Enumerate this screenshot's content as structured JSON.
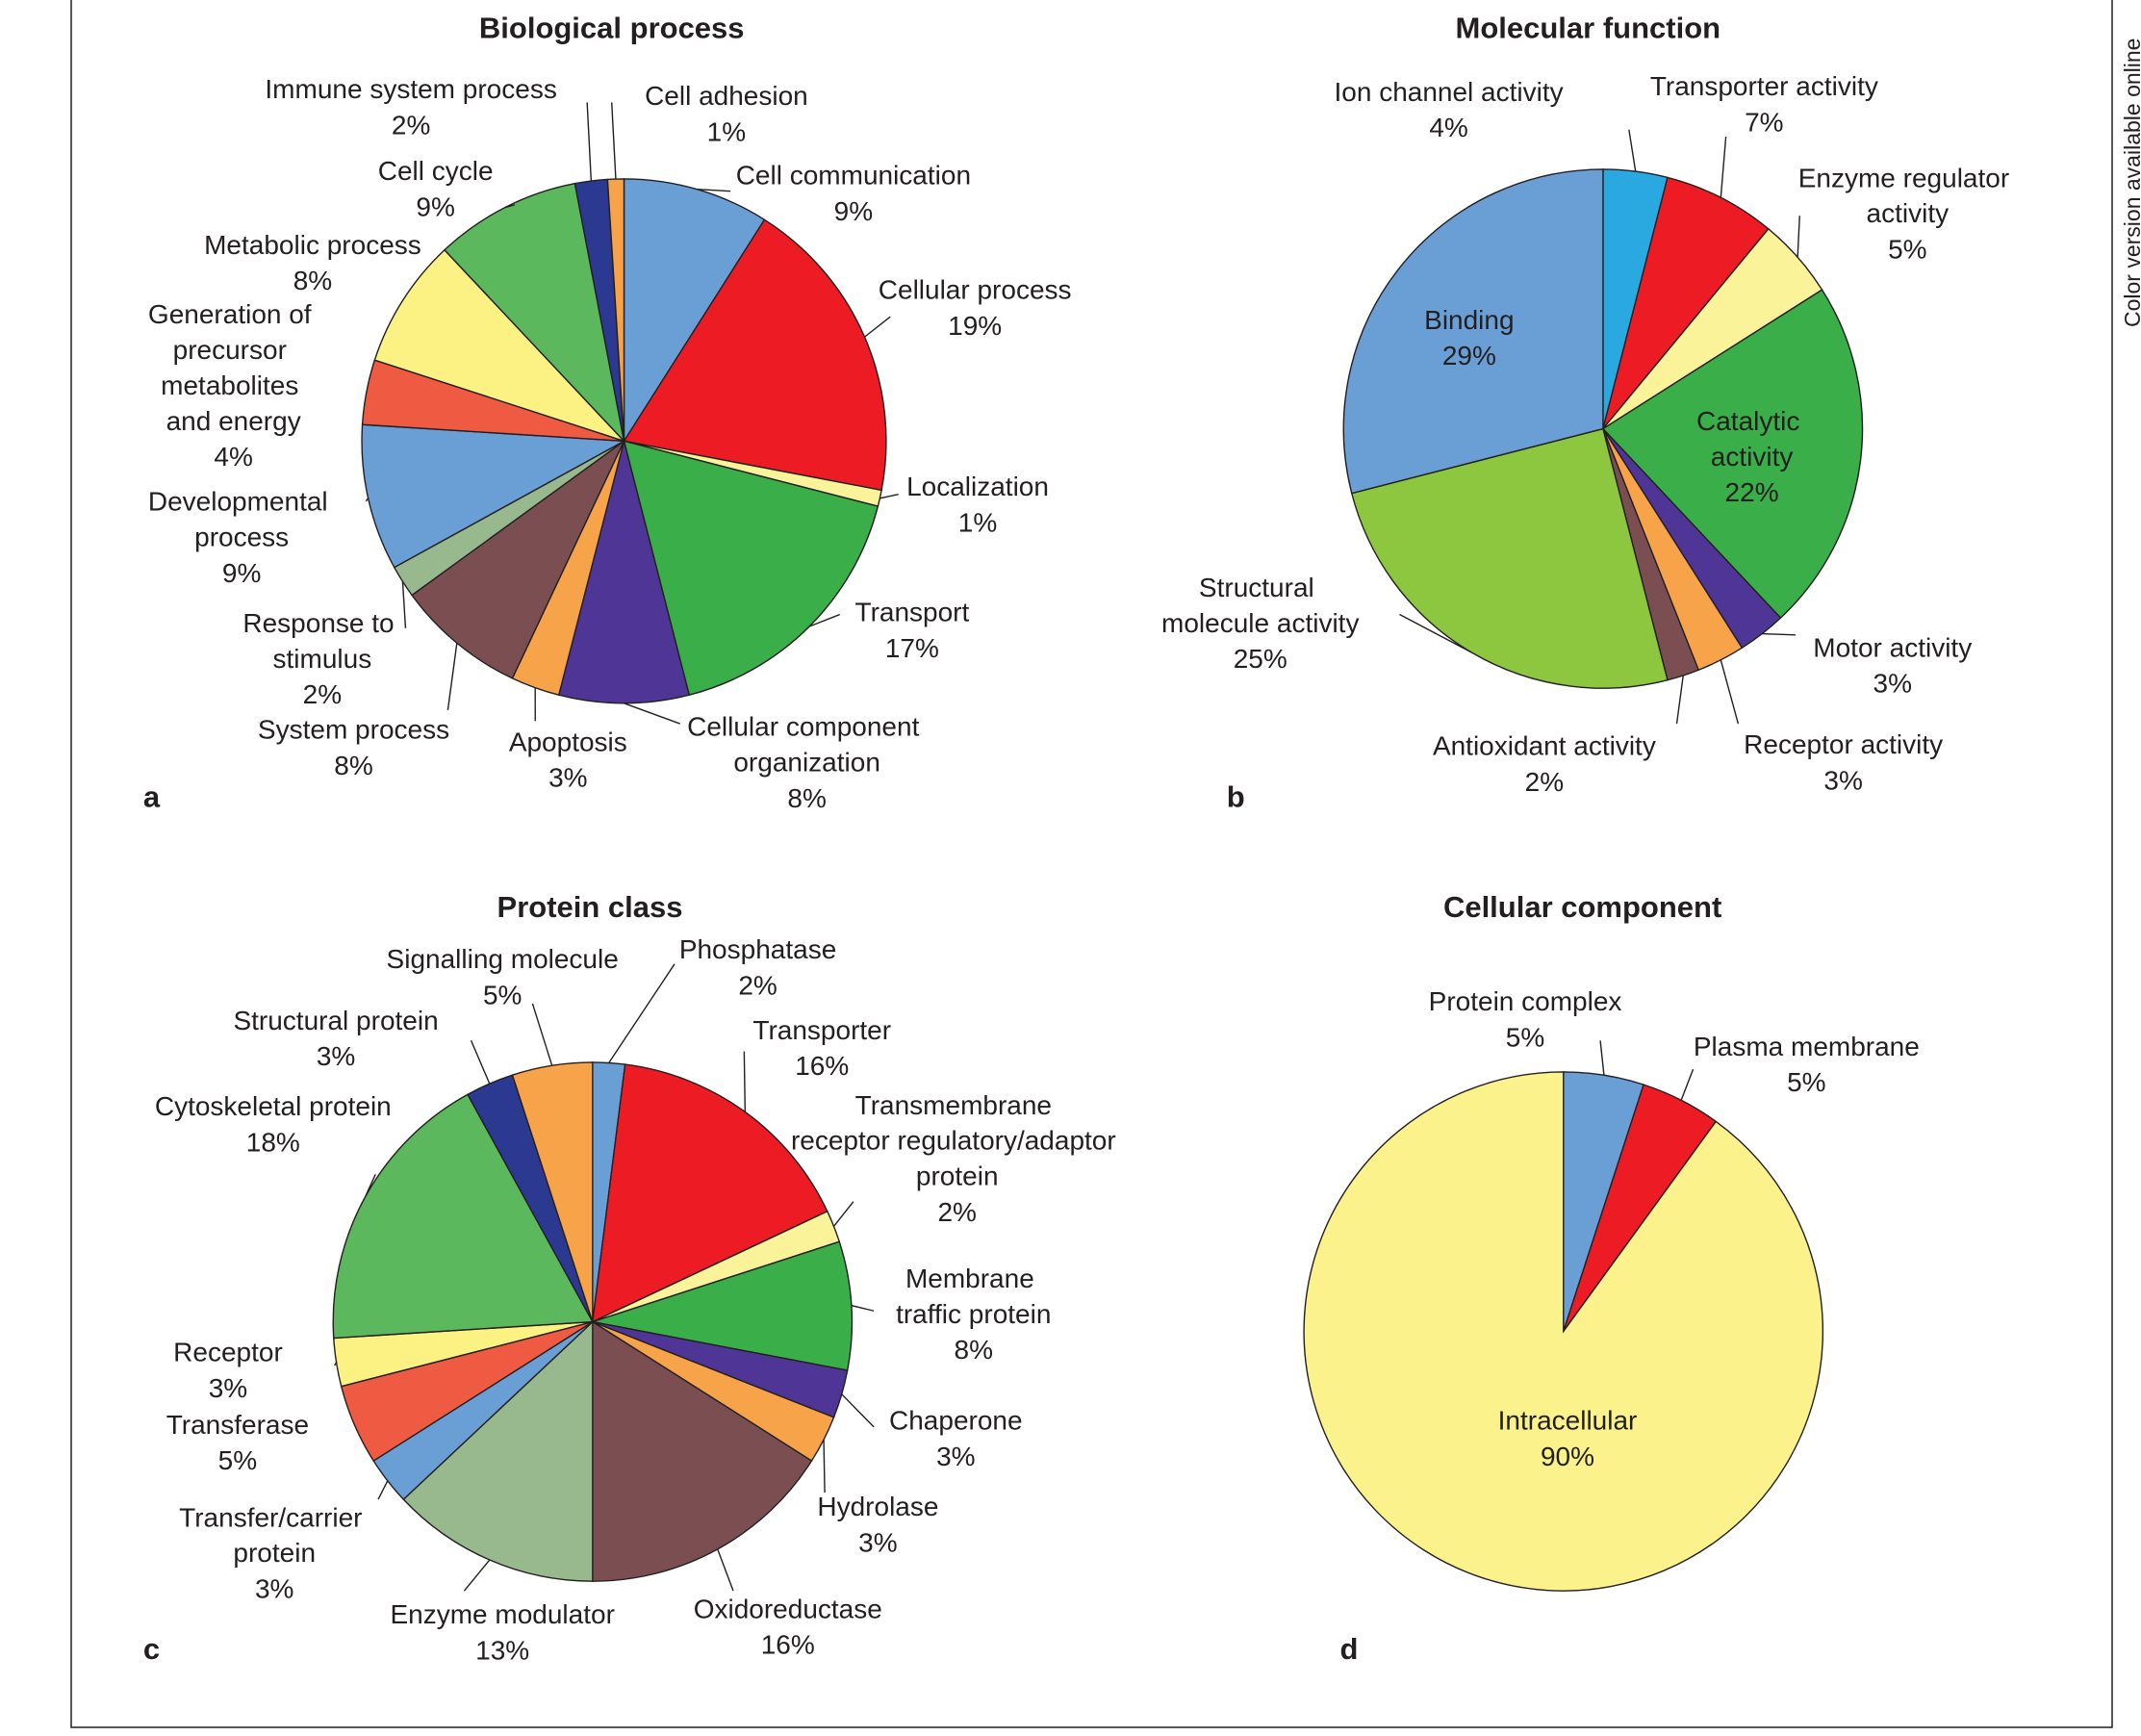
{
  "note": "Color version available online",
  "chart_data": [
    {
      "type": "pie",
      "title": "Biological process",
      "panel_label": "a",
      "categories": [
        "Cell communication",
        "Cellular process",
        "Localization",
        "Transport",
        "Cellular component organization",
        "Apoptosis",
        "System process",
        "Response to stimulus",
        "Developmental process",
        "Generation of precursor metabolites and energy",
        "Metabolic process",
        "Cell cycle",
        "Immune system process",
        "Cell adhesion"
      ],
      "values": [
        9,
        19,
        1,
        17,
        8,
        3,
        8,
        2,
        9,
        4,
        8,
        9,
        2,
        1
      ],
      "value_labels": [
        "9%",
        "19%",
        "1%",
        "17%",
        "8%",
        "3%",
        "8%",
        "2%",
        "9%",
        "4%",
        "8%",
        "9%",
        "2%",
        "1%"
      ],
      "colors": [
        "#6a9fd6",
        "#ed1c24",
        "#fbf39a",
        "#3aae49",
        "#4e3596",
        "#f7a34a",
        "#7b4f52",
        "#98b88e",
        "#6a9fd6",
        "#ef5a42",
        "#fbf283",
        "#5cb85c",
        "#2b3990",
        "#f7a34a"
      ]
    },
    {
      "type": "pie",
      "title": "Molecular function",
      "panel_label": "b",
      "categories": [
        "Ion channel activity",
        "Transporter activity",
        "Enzyme regulator activity",
        "Catalytic activity",
        "Motor activity",
        "Receptor activity",
        "Antioxidant activity",
        "Structural molecule activity",
        "Binding"
      ],
      "values": [
        4,
        7,
        5,
        22,
        3,
        3,
        2,
        25,
        29
      ],
      "value_labels": [
        "4%",
        "7%",
        "5%",
        "22%",
        "3%",
        "3%",
        "2%",
        "25%",
        "29%"
      ],
      "colors": [
        "#2aa8e0",
        "#ed1c24",
        "#fbf39a",
        "#3aae49",
        "#4e3596",
        "#f7a34a",
        "#7b4f52",
        "#8dc63f",
        "#6a9fd6"
      ]
    },
    {
      "type": "pie",
      "title": "Protein class",
      "panel_label": "c",
      "categories": [
        "Phosphatase",
        "Transporter",
        "Transmembrane receptor regulatory/adaptor protein",
        "Membrane traffic protein",
        "Chaperone",
        "Hydrolase",
        "Oxidoreductase",
        "Enzyme modulator",
        "Transfer/carrier protein",
        "Transferase",
        "Receptor",
        "Cytoskeletal protein",
        "Structural protein",
        "Signalling molecule"
      ],
      "values": [
        2,
        16,
        2,
        8,
        3,
        3,
        16,
        13,
        3,
        5,
        3,
        18,
        3,
        5
      ],
      "value_labels": [
        "2%",
        "16%",
        "2%",
        "8%",
        "3%",
        "3%",
        "16%",
        "13%",
        "3%",
        "5%",
        "3%",
        "18%",
        "3%",
        "5%"
      ],
      "colors": [
        "#6a9fd6",
        "#ed1c24",
        "#fbf39a",
        "#3aae49",
        "#4e3596",
        "#f7a34a",
        "#7b4f52",
        "#98b88e",
        "#6a9fd6",
        "#ef5a42",
        "#fbf283",
        "#5cb85c",
        "#2b3990",
        "#f7a34a"
      ]
    },
    {
      "type": "pie",
      "title": "Cellular component",
      "panel_label": "d",
      "categories": [
        "Protein complex",
        "Plasma membrane",
        "Intracellular"
      ],
      "values": [
        5,
        5,
        90
      ],
      "value_labels": [
        "5%",
        "5%",
        "90%"
      ],
      "colors": [
        "#6a9fd6",
        "#ed1c24",
        "#fbf28c"
      ]
    }
  ]
}
